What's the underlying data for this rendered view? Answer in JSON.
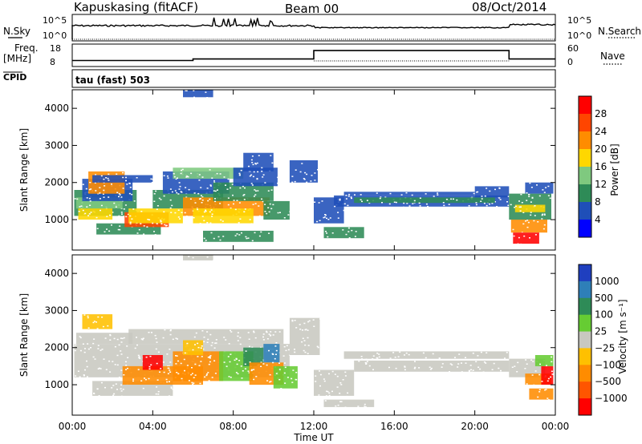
{
  "header": {
    "station": "Kapuskasing (fitACF)",
    "beam": "Beam 00",
    "date": "08/Oct/2014"
  },
  "info_panels": {
    "nsky_label": "N.Sky",
    "nsky_ticks": [
      "10^5",
      "10^0"
    ],
    "nsearch_label": "N.Search",
    "nsearch_ticks": [
      "10^5",
      "10^0"
    ],
    "freq_label_1": "Freq.",
    "freq_label_2": "[MHz]",
    "freq_ticks": [
      "18",
      "8"
    ],
    "nave_label": "Nave",
    "nave_ticks": [
      "60",
      "0"
    ],
    "cpid_label": "CPID",
    "cpid_value": "tau (fast) 503",
    "freq_steps": [
      {
        "from_hour": 0.0,
        "to_hour": 6.0,
        "mhz": 10.4
      },
      {
        "from_hour": 6.0,
        "to_hour": 12.0,
        "mhz": 11.2
      },
      {
        "from_hour": 12.0,
        "to_hour": 21.7,
        "mhz": 15.8
      },
      {
        "from_hour": 21.7,
        "to_hour": 24.0,
        "mhz": 11.2
      }
    ]
  },
  "chart_data": [
    {
      "type": "heatmap",
      "panel": "power",
      "ylabel": "Slant Range [km]",
      "yticks": [
        "1000",
        "2000",
        "3000",
        "4000"
      ],
      "xticks": [
        "00:00",
        "04:00",
        "08:00",
        "12:00",
        "16:00",
        "20:00",
        "00:00"
      ],
      "colorbar_label": "Power [dB]",
      "colorbar_ticks": [
        "4",
        "8",
        "12",
        "16",
        "20",
        "24",
        "28"
      ],
      "colors": [
        "#0000ff",
        "#1f4fb8",
        "#2e8b57",
        "#7fc97f",
        "#ffd700",
        "#ff8c00",
        "#ff4500",
        "#ff0000"
      ],
      "ylim": [
        180,
        4500
      ],
      "xlim_hours": [
        0,
        24
      ],
      "regions": [
        {
          "x0": 0.1,
          "x1": 3.2,
          "y0": 1100,
          "y1": 1800,
          "color": "#2e8b57"
        },
        {
          "x0": 0.2,
          "x1": 2.5,
          "y0": 1300,
          "y1": 1600,
          "color": "#7fc97f"
        },
        {
          "x0": 0.3,
          "x1": 2.0,
          "y0": 1000,
          "y1": 1300,
          "color": "#ffd700"
        },
        {
          "x0": 0.5,
          "x1": 3.0,
          "y0": 1500,
          "y1": 2100,
          "color": "#1f4fb8"
        },
        {
          "x0": 0.8,
          "x1": 2.6,
          "y0": 1700,
          "y1": 2300,
          "color": "#ff8c00"
        },
        {
          "x0": 1.0,
          "x1": 4.0,
          "y0": 2000,
          "y1": 2200,
          "color": "#1f4fb8"
        },
        {
          "x0": 1.2,
          "x1": 4.4,
          "y0": 600,
          "y1": 900,
          "color": "#2e8b57"
        },
        {
          "x0": 2.6,
          "x1": 4.8,
          "y0": 800,
          "y1": 1200,
          "color": "#ff4500"
        },
        {
          "x0": 2.8,
          "x1": 5.5,
          "y0": 900,
          "y1": 1300,
          "color": "#ffd700"
        },
        {
          "x0": 4.0,
          "x1": 7.5,
          "y0": 1300,
          "y1": 1800,
          "color": "#2e8b57"
        },
        {
          "x0": 4.5,
          "x1": 7.8,
          "y0": 1700,
          "y1": 2300,
          "color": "#1f4fb8"
        },
        {
          "x0": 5.0,
          "x1": 8.5,
          "y0": 2100,
          "y1": 2400,
          "color": "#7fc97f"
        },
        {
          "x0": 5.5,
          "x1": 9.8,
          "y0": 1100,
          "y1": 1600,
          "color": "#ff8c00"
        },
        {
          "x0": 6.0,
          "x1": 9.0,
          "y0": 900,
          "y1": 1300,
          "color": "#ffd700"
        },
        {
          "x0": 7.0,
          "x1": 10.0,
          "y0": 1500,
          "y1": 2000,
          "color": "#2e8b57"
        },
        {
          "x0": 8.0,
          "x1": 10.2,
          "y0": 1900,
          "y1": 2400,
          "color": "#1f4fb8"
        },
        {
          "x0": 8.5,
          "x1": 10.0,
          "y0": 2300,
          "y1": 2800,
          "color": "#1f4fb8"
        },
        {
          "x0": 9.5,
          "x1": 10.8,
          "y0": 1000,
          "y1": 1500,
          "color": "#2e8b57"
        },
        {
          "x0": 6.5,
          "x1": 10.0,
          "y0": 400,
          "y1": 700,
          "color": "#2e8b57"
        },
        {
          "x0": 5.5,
          "x1": 7.0,
          "y0": 4300,
          "y1": 4500,
          "color": "#1f4fb8"
        },
        {
          "x0": 10.8,
          "x1": 12.2,
          "y0": 2000,
          "y1": 2600,
          "color": "#1f4fb8"
        },
        {
          "x0": 12.0,
          "x1": 13.5,
          "y0": 900,
          "y1": 1600,
          "color": "#1f4fb8"
        },
        {
          "x0": 12.5,
          "x1": 14.5,
          "y0": 500,
          "y1": 800,
          "color": "#2e8b57"
        },
        {
          "x0": 13.0,
          "x1": 21.7,
          "y0": 1350,
          "y1": 1650,
          "color": "#1f4fb8"
        },
        {
          "x0": 14.0,
          "x1": 21.0,
          "y0": 1450,
          "y1": 1600,
          "color": "#2e8b57"
        },
        {
          "x0": 13.5,
          "x1": 20.0,
          "y0": 1650,
          "y1": 1750,
          "color": "#1f4fb8"
        },
        {
          "x0": 20.0,
          "x1": 21.7,
          "y0": 1600,
          "y1": 1900,
          "color": "#1f4fb8"
        },
        {
          "x0": 21.7,
          "x1": 23.8,
          "y0": 1000,
          "y1": 1700,
          "color": "#2e8b57"
        },
        {
          "x0": 22.0,
          "x1": 23.5,
          "y0": 1200,
          "y1": 1400,
          "color": "#ffd700"
        },
        {
          "x0": 21.8,
          "x1": 23.6,
          "y0": 650,
          "y1": 1000,
          "color": "#ff8c00"
        },
        {
          "x0": 21.9,
          "x1": 23.2,
          "y0": 350,
          "y1": 650,
          "color": "#ff0000"
        },
        {
          "x0": 22.5,
          "x1": 23.9,
          "y0": 1700,
          "y1": 2000,
          "color": "#1f4fb8"
        }
      ]
    },
    {
      "type": "heatmap",
      "panel": "velocity",
      "ylabel": "Slant Range [km]",
      "yticks": [
        "1000",
        "2000",
        "3000",
        "4000"
      ],
      "xticks": [
        "00:00",
        "04:00",
        "08:00",
        "12:00",
        "16:00",
        "20:00",
        "00:00"
      ],
      "xlabel": "Time UT",
      "colorbar_label": "Velocity [m s⁻¹]",
      "colorbar_ticks": [
        "1000",
        "500",
        "100",
        "25",
        "−25",
        "−100",
        "−500",
        "−1000"
      ],
      "colors": [
        "#1f3fbf",
        "#2e7fb8",
        "#2e8b57",
        "#66cc33",
        "#c8c8c0",
        "#ffc000",
        "#ff8c00",
        "#ff5500",
        "#ff0000"
      ],
      "ylim": [
        180,
        4500
      ],
      "xlim_hours": [
        0,
        24
      ],
      "regions": [
        {
          "x0": 0.1,
          "x1": 10.8,
          "y0": 1200,
          "y1": 2100,
          "color": "#c8c8c0"
        },
        {
          "x0": 0.2,
          "x1": 3.0,
          "y0": 2100,
          "y1": 2400,
          "color": "#c8c8c0"
        },
        {
          "x0": 2.8,
          "x1": 10.5,
          "y0": 2100,
          "y1": 2500,
          "color": "#c8c8c0"
        },
        {
          "x0": 1.0,
          "x1": 5.0,
          "y0": 700,
          "y1": 1100,
          "color": "#c8c8c0"
        },
        {
          "x0": 2.5,
          "x1": 6.5,
          "y0": 1000,
          "y1": 1500,
          "color": "#ff8c00"
        },
        {
          "x0": 3.5,
          "x1": 4.5,
          "y0": 1400,
          "y1": 1800,
          "color": "#ff0000"
        },
        {
          "x0": 5.0,
          "x1": 7.5,
          "y0": 1100,
          "y1": 1900,
          "color": "#ff8c00"
        },
        {
          "x0": 5.5,
          "x1": 6.5,
          "y0": 1800,
          "y1": 2200,
          "color": "#ffc000"
        },
        {
          "x0": 7.3,
          "x1": 9.0,
          "y0": 1100,
          "y1": 1900,
          "color": "#66cc33"
        },
        {
          "x0": 8.5,
          "x1": 9.5,
          "y0": 1500,
          "y1": 2000,
          "color": "#2e8b57"
        },
        {
          "x0": 8.8,
          "x1": 10.5,
          "y0": 1000,
          "y1": 1600,
          "color": "#ff8c00"
        },
        {
          "x0": 9.5,
          "x1": 10.3,
          "y0": 1600,
          "y1": 2100,
          "color": "#2e7fb8"
        },
        {
          "x0": 10.0,
          "x1": 11.2,
          "y0": 900,
          "y1": 1500,
          "color": "#66cc33"
        },
        {
          "x0": 0.5,
          "x1": 2.0,
          "y0": 2500,
          "y1": 2900,
          "color": "#ffc000"
        },
        {
          "x0": 5.5,
          "x1": 7.0,
          "y0": 4350,
          "y1": 4500,
          "color": "#c8c8c0"
        },
        {
          "x0": 10.8,
          "x1": 12.3,
          "y0": 1800,
          "y1": 2800,
          "color": "#c8c8c0"
        },
        {
          "x0": 12.0,
          "x1": 14.0,
          "y0": 700,
          "y1": 1400,
          "color": "#c8c8c0"
        },
        {
          "x0": 12.5,
          "x1": 15.0,
          "y0": 400,
          "y1": 600,
          "color": "#c8c8c0"
        },
        {
          "x0": 14.0,
          "x1": 21.7,
          "y0": 1350,
          "y1": 1650,
          "color": "#c8c8c0"
        },
        {
          "x0": 13.5,
          "x1": 21.7,
          "y0": 1700,
          "y1": 1900,
          "color": "#c8c8c0"
        },
        {
          "x0": 21.7,
          "x1": 23.5,
          "y0": 1200,
          "y1": 1700,
          "color": "#c8c8c0"
        },
        {
          "x0": 22.5,
          "x1": 23.8,
          "y0": 1000,
          "y1": 1300,
          "color": "#ff8c00"
        },
        {
          "x0": 22.7,
          "x1": 23.9,
          "y0": 600,
          "y1": 900,
          "color": "#ff8c00"
        },
        {
          "x0": 23.3,
          "x1": 23.9,
          "y0": 1000,
          "y1": 1500,
          "color": "#ff0000"
        },
        {
          "x0": 23.0,
          "x1": 23.9,
          "y0": 1500,
          "y1": 1800,
          "color": "#66cc33"
        }
      ]
    }
  ]
}
